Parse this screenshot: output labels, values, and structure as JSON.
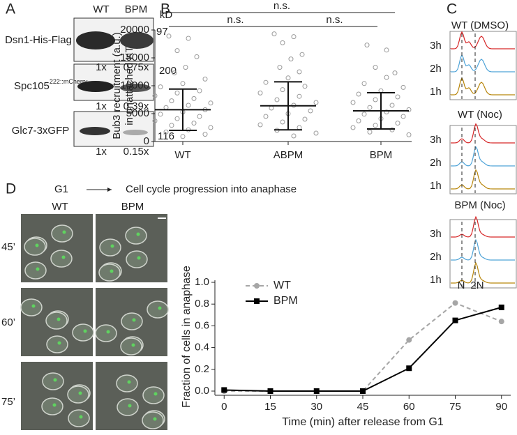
{
  "panels": [
    "A",
    "B",
    "C",
    "D"
  ],
  "blot": {
    "lanes": [
      "WT",
      "BPM"
    ],
    "unit": "kD",
    "rows": [
      {
        "label": "Dsn1-His-Flag",
        "marker": "97",
        "ratios": [
          "1x",
          "0.75x"
        ]
      },
      {
        "label": "Spc105",
        "sup": "222::mCherry",
        "marker": "200",
        "ratios": [
          "1x",
          "0.39x"
        ]
      },
      {
        "label": "Glc7-3xGFP",
        "marker": "116",
        "ratios": [
          "1x",
          "0.15x"
        ]
      }
    ]
  },
  "flow": {
    "titles": [
      "WT (DMSO)",
      "WT (Noc)",
      "BPM (Noc)"
    ],
    "times": [
      "3h",
      "2h",
      "1h"
    ],
    "axis": [
      "N",
      "2N"
    ]
  },
  "microscopy": {
    "start": "G1",
    "progression": "Cell cycle progression into anaphase",
    "columns": [
      "WT",
      "BPM"
    ],
    "rows": [
      "45’",
      "60’",
      "75’"
    ]
  },
  "chart_data": [
    {
      "type": "strip",
      "ylabel": [
        "Bub3 recruitment (a.u.)",
        "in unattached KT"
      ],
      "categories": [
        "WT",
        "ABPM",
        "BPM"
      ],
      "points": [
        [
          18900,
          18500,
          16300,
          15200,
          13300,
          12300,
          11200,
          10400,
          9800,
          9100,
          8700,
          8200,
          7700,
          7300,
          6900,
          6500,
          6100,
          5700,
          5300,
          4900,
          4500,
          4100,
          3700,
          3300,
          2900,
          2500,
          2100,
          1700,
          1300,
          900
        ],
        [
          19300,
          18800,
          17700,
          15600,
          14800,
          13300,
          12500,
          11400,
          10600,
          9900,
          9300,
          8700,
          8100,
          7500,
          7000,
          6500,
          6000,
          5500,
          5000,
          4500,
          4000,
          3500,
          3000,
          2500,
          2000,
          1500,
          1000
        ],
        [
          17300,
          16400,
          13300,
          12300,
          11500,
          10400,
          9700,
          9100,
          8500,
          8000,
          7500,
          7000,
          6500,
          6100,
          5700,
          5300,
          4900,
          4500,
          4100,
          3700,
          3300,
          2900,
          2500,
          2100,
          1700,
          1200
        ]
      ],
      "mean": [
        5700,
        6400,
        5500
      ],
      "sd": [
        3700,
        4300,
        3250
      ],
      "annotations": [
        "n.s.",
        "n.s.",
        "n.s."
      ],
      "ylim": [
        0,
        20000
      ],
      "yticks": [
        0,
        5000,
        10000,
        15000,
        20000
      ]
    },
    {
      "type": "line",
      "xlabel": "Time (min) after release from G1",
      "ylabel": "Fraction of cells in anaphase",
      "x": [
        0,
        15,
        30,
        45,
        60,
        75,
        90
      ],
      "series": [
        {
          "name": "WT",
          "color": "#a6a6a6",
          "style": "dashed",
          "marker": "circle",
          "values": [
            0,
            0,
            0,
            0,
            0.47,
            0.81,
            0.64
          ]
        },
        {
          "name": "BPM",
          "color": "#000000",
          "style": "solid",
          "marker": "square",
          "values": [
            0.01,
            0,
            0,
            0,
            0.21,
            0.65,
            0.77
          ]
        }
      ],
      "xlim": [
        -3,
        93
      ],
      "xticks": [
        0,
        15,
        30,
        45,
        60,
        75,
        90
      ],
      "ylim": [
        0,
        1
      ],
      "yticks": [
        {
          "value": 0,
          "label": "0.0"
        },
        0.2,
        0.4,
        0.6,
        0.8,
        {
          "value": 1,
          "label": "1.0"
        }
      ]
    }
  ]
}
